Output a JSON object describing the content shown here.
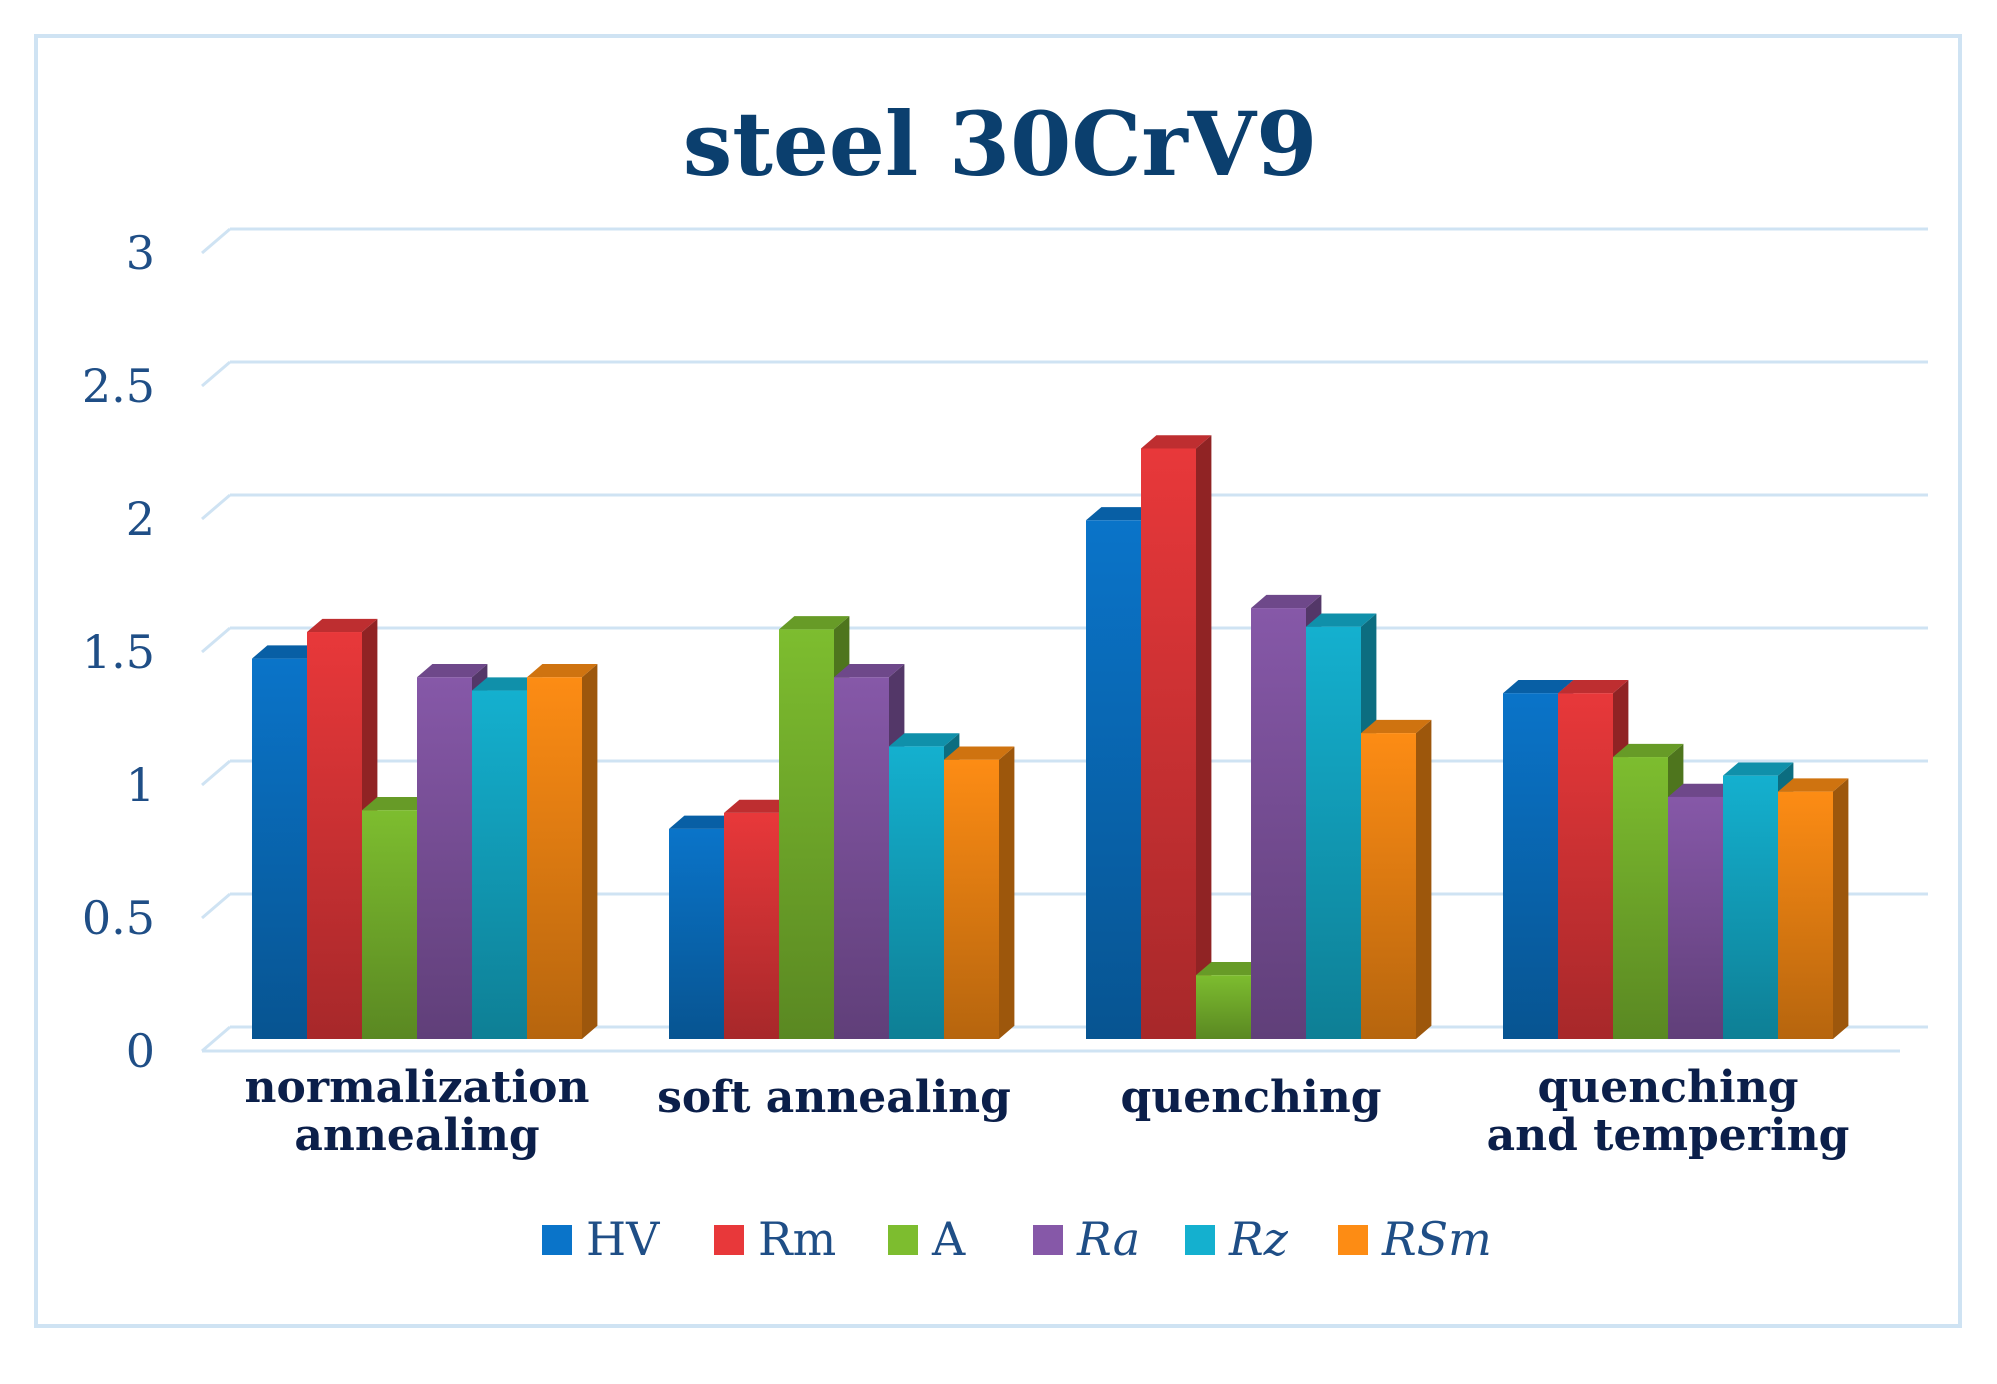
{
  "chart_data": {
    "type": "bar",
    "title": "steel 30CrV9",
    "xlabel": "",
    "ylabel": "",
    "ylim": [
      0,
      3
    ],
    "yticks": [
      "0",
      "0.5",
      "1",
      "1.5",
      "2",
      "2.5",
      "3"
    ],
    "grid": true,
    "legend_position": "bottom",
    "categories": [
      [
        "normalization",
        "annealing"
      ],
      [
        "soft annealing"
      ],
      [
        "quenching"
      ],
      [
        "quenching",
        "and tempering"
      ]
    ],
    "series": [
      {
        "name": "HV",
        "italic": false,
        "color": "#0a74c9",
        "values": [
          1.43,
          0.79,
          1.95,
          1.3
        ]
      },
      {
        "name": "Rm",
        "italic": false,
        "color": "#e8383a",
        "values": [
          1.53,
          0.85,
          2.22,
          1.3
        ]
      },
      {
        "name": "A",
        "italic": false,
        "color": "#7dbd2f",
        "values": [
          0.86,
          1.54,
          0.24,
          1.06
        ]
      },
      {
        "name": "Ra",
        "italic": true,
        "color": "#8658a8",
        "values": [
          1.36,
          1.36,
          1.62,
          0.91
        ]
      },
      {
        "name": "Rz",
        "italic": true,
        "color": "#14b0cf",
        "values": [
          1.31,
          1.1,
          1.55,
          0.99
        ]
      },
      {
        "name": "RSm",
        "italic": true,
        "color": "#fd8c14",
        "values": [
          1.36,
          1.05,
          1.15,
          0.93
        ]
      }
    ]
  }
}
